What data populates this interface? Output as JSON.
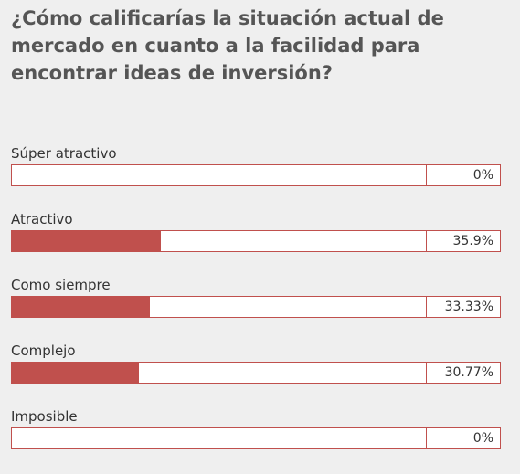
{
  "question": "¿Cómo calificarías la situación actual de mercado en cuanto a la facilidad para encontrar ideas de inversión?",
  "colors": {
    "bar": "#c0504d",
    "background": "#efefef"
  },
  "options": [
    {
      "label": "Súper atractivo",
      "percent": "0%",
      "value": 0
    },
    {
      "label": "Atractivo",
      "percent": "35.9%",
      "value": 35.9
    },
    {
      "label": "Como siempre",
      "percent": "33.33%",
      "value": 33.33
    },
    {
      "label": "Complejo",
      "percent": "30.77%",
      "value": 30.77
    },
    {
      "label": "Imposible",
      "percent": "0%",
      "value": 0
    }
  ]
}
